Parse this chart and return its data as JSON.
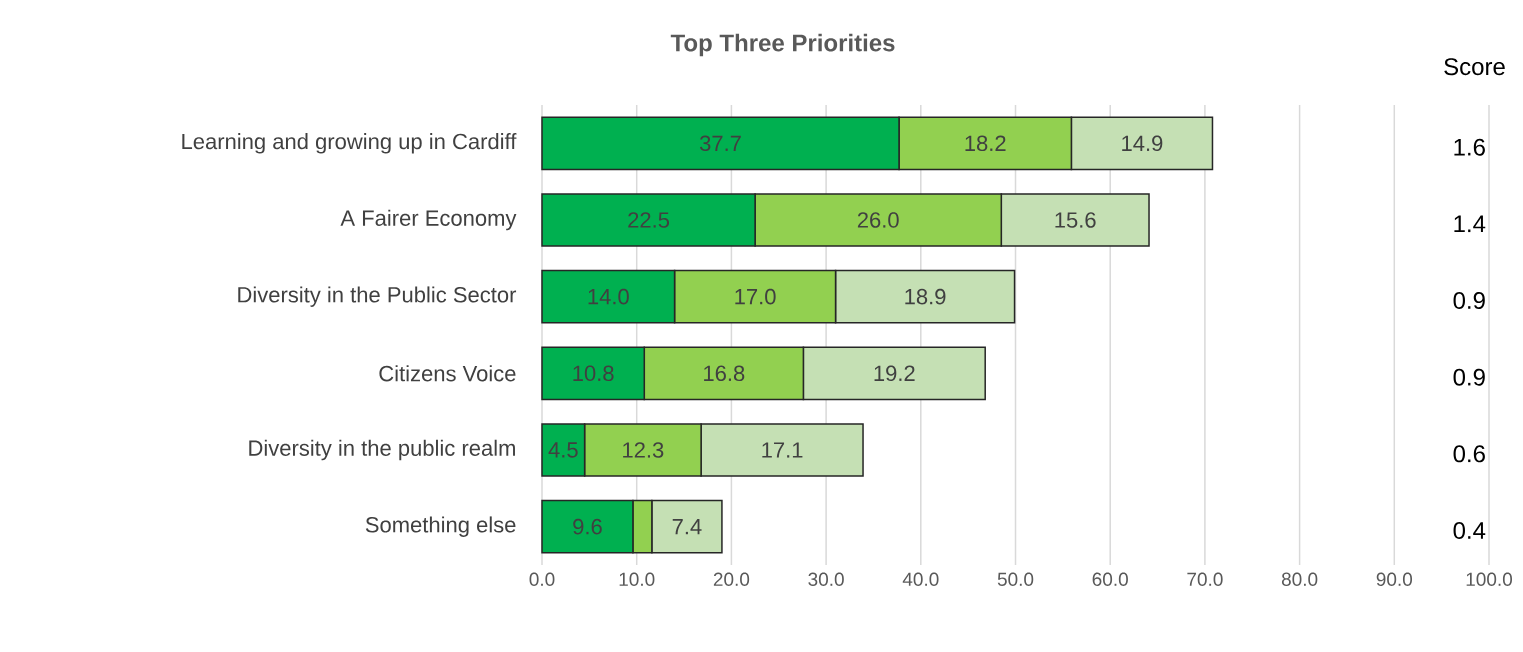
{
  "chart_data": {
    "type": "bar",
    "orientation": "horizontal",
    "stacked": true,
    "title": "Top Three Priorities",
    "categories": [
      "Learning and growing up in Cardiff",
      "A Fairer Economy",
      "Diversity in the Public Sector",
      "Citizens Voice",
      "Diversity in the public realm",
      "Something else"
    ],
    "series": [
      {
        "color": "#00b050",
        "values": [
          37.7,
          22.5,
          14.0,
          10.8,
          4.5,
          9.6
        ],
        "value_labels": [
          "37.7",
          "22.5",
          "14.0",
          "10.8",
          "4.5",
          "9.6"
        ]
      },
      {
        "color": "#92d050",
        "values": [
          18.2,
          26.0,
          17.0,
          16.8,
          12.3,
          2.0
        ],
        "value_labels": [
          "18.2",
          "26.0",
          "17.0",
          "16.8",
          "12.3",
          null
        ]
      },
      {
        "color": "#c5e0b4",
        "values": [
          14.9,
          15.6,
          18.9,
          19.2,
          17.1,
          7.4
        ],
        "value_labels": [
          "14.9",
          "15.6",
          "18.9",
          "19.2",
          "17.1",
          "7.4"
        ]
      }
    ],
    "xlim": [
      0,
      100
    ],
    "xticks": [
      {
        "value": 0,
        "label": "0.0"
      },
      {
        "value": 10,
        "label": "10.0"
      },
      {
        "value": 20,
        "label": "20.0"
      },
      {
        "value": 30,
        "label": "30.0"
      },
      {
        "value": 40,
        "label": "40.0"
      },
      {
        "value": 50,
        "label": "50.0"
      },
      {
        "value": 60,
        "label": "60.0"
      },
      {
        "value": 70,
        "label": "70.0"
      },
      {
        "value": 80,
        "label": "80.0"
      },
      {
        "value": 90,
        "label": "90.0"
      },
      {
        "value": 100,
        "label": "100.0"
      }
    ],
    "grid": "x",
    "annotations": [
      "Score",
      "1.6",
      "1.4",
      "0.9",
      "0.9",
      "0.6",
      "0.4"
    ]
  }
}
